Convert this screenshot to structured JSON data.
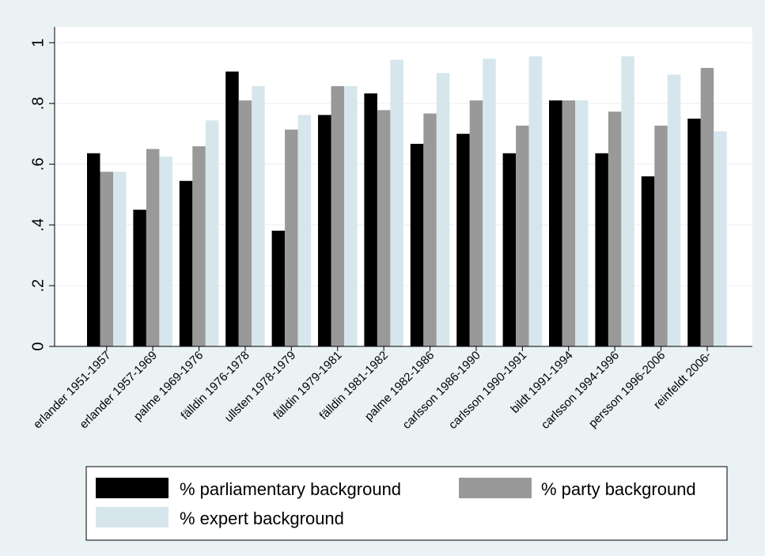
{
  "chart_data": {
    "type": "bar",
    "categories": [
      "erlander 1951-1957",
      "erlander 1957-1969",
      "palme 1969-1976",
      "fälldin 1976-1978",
      "ullsten 1978-1979",
      "fälldin 1979-1981",
      "fälldin 1981-1982",
      "palme 1982-1986",
      "carlsson 1986-1990",
      "carlsson 1990-1991",
      "bildt 1991-1994",
      "carlsson 1994-1996",
      "persson 1996-2006",
      "reinfeldt 2006-"
    ],
    "series": [
      {
        "name": "% parliamentary background",
        "color": "#000000",
        "values": [
          0.636,
          0.45,
          0.545,
          0.905,
          0.381,
          0.762,
          0.833,
          0.667,
          0.7,
          0.636,
          0.81,
          0.636,
          0.56,
          0.75
        ]
      },
      {
        "name": "% party background",
        "color": "#999999",
        "values": [
          0.575,
          0.65,
          0.659,
          0.81,
          0.714,
          0.857,
          0.778,
          0.767,
          0.81,
          0.727,
          0.81,
          0.773,
          0.727,
          0.917
        ]
      },
      {
        "name": "% expert background",
        "color": "#d6e6ec",
        "values": [
          0.575,
          0.625,
          0.744,
          0.857,
          0.762,
          0.857,
          0.944,
          0.9,
          0.947,
          0.955,
          0.81,
          0.955,
          0.895,
          0.708
        ]
      }
    ],
    "yticks": [
      0,
      0.2,
      0.4,
      0.6,
      0.8,
      1
    ],
    "ytick_labels": [
      "0",
      ".2",
      ".4",
      ".6",
      ".8",
      "1"
    ],
    "ylim": [
      0,
      1.05
    ],
    "grid": true,
    "legend_position": "bottom"
  }
}
